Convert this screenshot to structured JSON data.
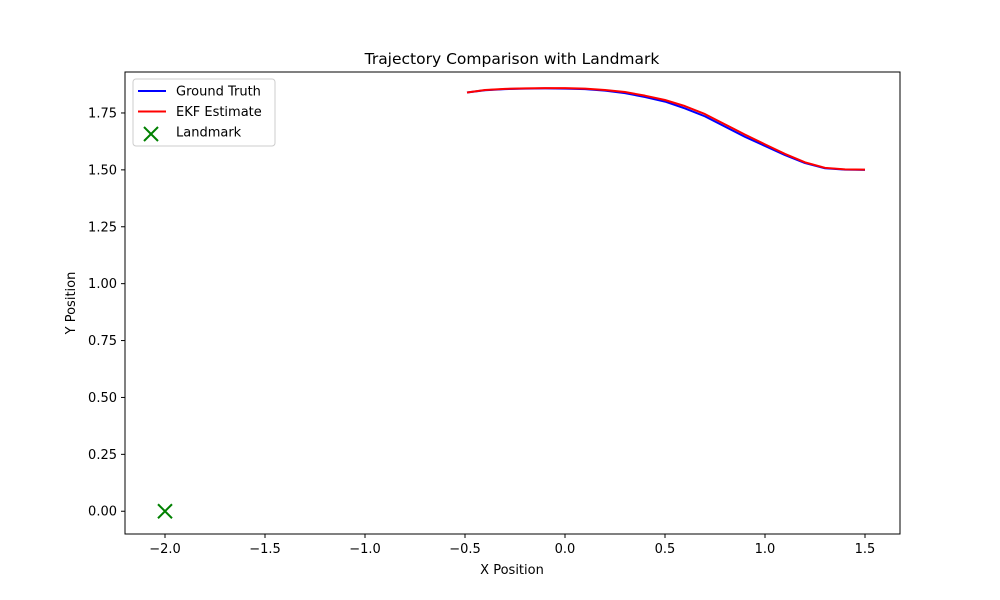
{
  "chart_data": {
    "type": "line",
    "title": "Trajectory Comparison with Landmark",
    "xlabel": "X Position",
    "ylabel": "Y Position",
    "xlim": [
      -2.2,
      1.675
    ],
    "ylim": [
      -0.1,
      1.93
    ],
    "xticks": [
      -2.0,
      -1.5,
      -1.0,
      -0.5,
      0.0,
      0.5,
      1.0,
      1.5
    ],
    "xtick_labels": [
      "−2.0",
      "−1.5",
      "−1.0",
      "−0.5",
      "0.0",
      "0.5",
      "1.0",
      "1.5"
    ],
    "yticks": [
      0.0,
      0.25,
      0.5,
      0.75,
      1.0,
      1.25,
      1.5,
      1.75
    ],
    "ytick_labels": [
      "0.00",
      "0.25",
      "0.50",
      "0.75",
      "1.00",
      "1.25",
      "1.50",
      "1.75"
    ],
    "grid": false,
    "legend_position": "top-left",
    "series": [
      {
        "name": "Ground Truth",
        "color": "#0000ff",
        "kind": "line",
        "x": [
          -0.49,
          -0.4,
          -0.3,
          -0.2,
          -0.1,
          0.0,
          0.1,
          0.2,
          0.3,
          0.4,
          0.5,
          0.6,
          0.7,
          0.8,
          0.9,
          1.0,
          1.1,
          1.2,
          1.3,
          1.4,
          1.5
        ],
        "y": [
          1.84,
          1.85,
          1.855,
          1.857,
          1.858,
          1.857,
          1.855,
          1.848,
          1.837,
          1.82,
          1.8,
          1.77,
          1.735,
          1.69,
          1.645,
          1.605,
          1.565,
          1.53,
          1.507,
          1.501,
          1.5
        ]
      },
      {
        "name": "EKF Estimate",
        "color": "#ff0000",
        "kind": "line",
        "x": [
          -0.49,
          -0.4,
          -0.3,
          -0.2,
          -0.1,
          0.0,
          0.1,
          0.2,
          0.3,
          0.4,
          0.5,
          0.6,
          0.7,
          0.8,
          0.9,
          1.0,
          1.1,
          1.2,
          1.3,
          1.4,
          1.5
        ],
        "y": [
          1.84,
          1.851,
          1.856,
          1.858,
          1.859,
          1.859,
          1.857,
          1.851,
          1.842,
          1.826,
          1.807,
          1.78,
          1.745,
          1.7,
          1.655,
          1.612,
          1.57,
          1.533,
          1.509,
          1.502,
          1.501
        ]
      },
      {
        "name": "Landmark",
        "color": "#008000",
        "kind": "marker-x",
        "x": [
          -2.0
        ],
        "y": [
          0.0
        ]
      }
    ]
  }
}
